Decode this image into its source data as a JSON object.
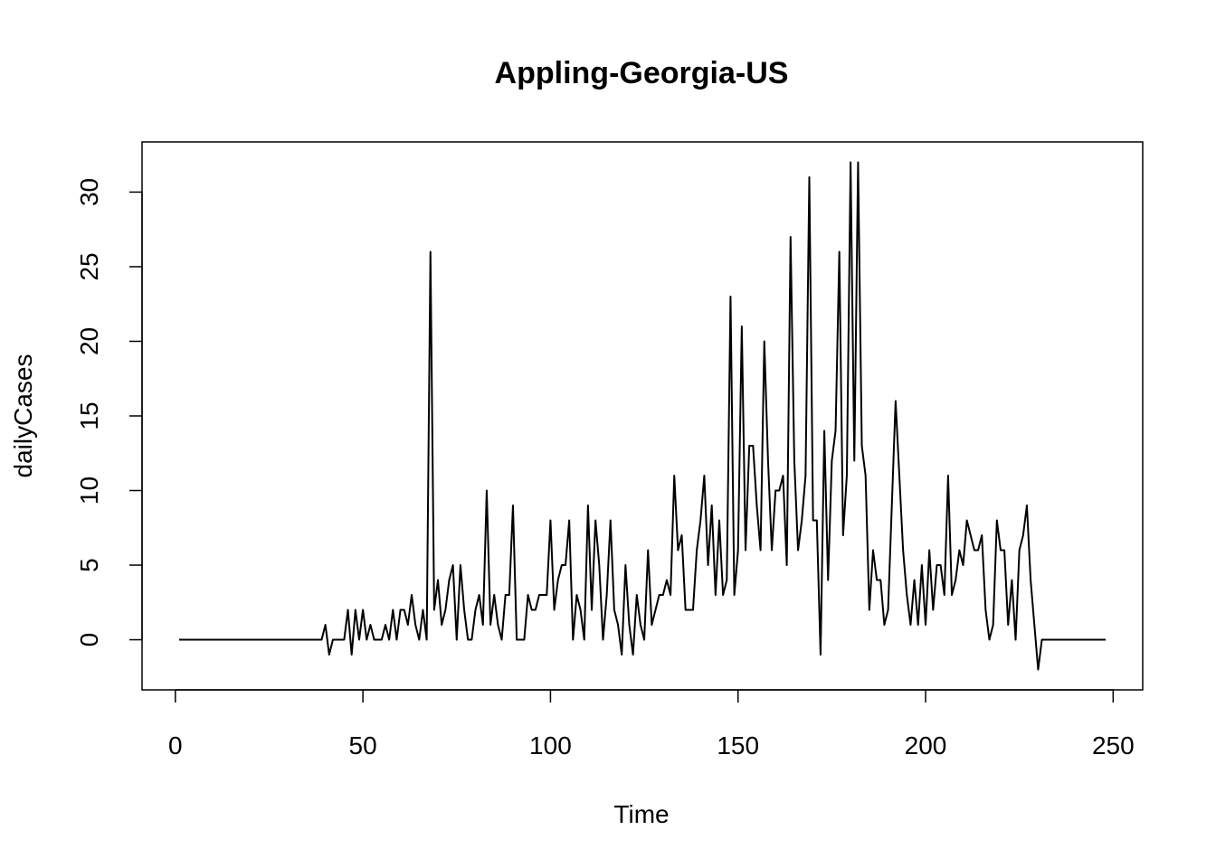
{
  "chart_data": {
    "type": "line",
    "title": "Appling-Georgia-US",
    "x_label": "Time",
    "y_label": "dailyCases",
    "x": [
      1,
      2,
      3,
      4,
      5,
      6,
      7,
      8,
      9,
      10,
      11,
      12,
      13,
      14,
      15,
      16,
      17,
      18,
      19,
      20,
      21,
      22,
      23,
      24,
      25,
      26,
      27,
      28,
      29,
      30,
      31,
      32,
      33,
      34,
      35,
      36,
      37,
      38,
      39,
      40,
      41,
      42,
      43,
      44,
      45,
      46,
      47,
      48,
      49,
      50,
      51,
      52,
      53,
      54,
      55,
      56,
      57,
      58,
      59,
      60,
      61,
      62,
      63,
      64,
      65,
      66,
      67,
      68,
      69,
      70,
      71,
      72,
      73,
      74,
      75,
      76,
      77,
      78,
      79,
      80,
      81,
      82,
      83,
      84,
      85,
      86,
      87,
      88,
      89,
      90,
      91,
      92,
      93,
      94,
      95,
      96,
      97,
      98,
      99,
      100,
      101,
      102,
      103,
      104,
      105,
      106,
      107,
      108,
      109,
      110,
      111,
      112,
      113,
      114,
      115,
      116,
      117,
      118,
      119,
      120,
      121,
      122,
      123,
      124,
      125,
      126,
      127,
      128,
      129,
      130,
      131,
      132,
      133,
      134,
      135,
      136,
      137,
      138,
      139,
      140,
      141,
      142,
      143,
      144,
      145,
      146,
      147,
      148,
      149,
      150,
      151,
      152,
      153,
      154,
      155,
      156,
      157,
      158,
      159,
      160,
      161,
      162,
      163,
      164,
      165,
      166,
      167,
      168,
      169,
      170,
      171,
      172,
      173,
      174,
      175,
      176,
      177,
      178,
      179,
      180,
      181,
      182,
      183,
      184,
      185,
      186,
      187,
      188,
      189,
      190,
      191,
      192,
      193,
      194,
      195,
      196,
      197,
      198,
      199,
      200,
      201,
      202,
      203,
      204,
      205,
      206,
      207,
      208,
      209,
      210,
      211,
      212,
      213,
      214,
      215,
      216,
      217,
      218,
      219,
      220,
      221,
      222,
      223,
      224,
      225,
      226,
      227,
      228,
      229,
      230,
      231,
      232,
      233,
      234,
      235,
      236,
      237,
      238,
      239,
      240,
      241,
      242,
      243,
      244,
      245,
      246,
      247,
      248
    ],
    "series": [
      {
        "color": "#000000",
        "values": [
          0,
          0,
          0,
          0,
          0,
          0,
          0,
          0,
          0,
          0,
          0,
          0,
          0,
          0,
          0,
          0,
          0,
          0,
          0,
          0,
          0,
          0,
          0,
          0,
          0,
          0,
          0,
          0,
          0,
          0,
          0,
          0,
          0,
          0,
          0,
          0,
          0,
          0,
          0,
          1,
          -1,
          0,
          0,
          0,
          0,
          2,
          -1,
          2,
          0,
          2,
          0,
          1,
          0,
          0,
          0,
          1,
          0,
          2,
          0,
          2,
          2,
          1,
          3,
          1,
          0,
          2,
          0,
          26,
          2,
          4,
          1,
          2,
          4,
          5,
          0,
          5,
          2,
          0,
          0,
          2,
          3,
          1,
          10,
          1,
          3,
          1,
          0,
          3,
          3,
          9,
          0,
          0,
          0,
          3,
          2,
          2,
          3,
          3,
          3,
          8,
          2,
          4,
          5,
          5,
          8,
          0,
          3,
          2,
          0,
          9,
          2,
          8,
          5,
          0,
          3,
          8,
          2,
          1,
          -1,
          5,
          1,
          -1,
          3,
          1,
          0,
          6,
          1,
          2,
          3,
          3,
          4,
          3,
          11,
          6,
          7,
          2,
          2,
          2,
          6,
          8,
          11,
          5,
          9,
          3,
          8,
          3,
          4,
          23,
          3,
          6,
          21,
          6,
          13,
          13,
          9,
          6,
          20,
          12,
          6,
          10,
          10,
          11,
          5,
          27,
          12,
          6,
          8,
          11,
          31,
          8,
          8,
          -1,
          14,
          4,
          12,
          14,
          26,
          7,
          11,
          32,
          12,
          32,
          13,
          11,
          2,
          6,
          4,
          4,
          1,
          2,
          9,
          16,
          11,
          6,
          3,
          1,
          4,
          1,
          5,
          1,
          6,
          2,
          5,
          5,
          3,
          11,
          3,
          4,
          6,
          5,
          8,
          7,
          6,
          6,
          7,
          2,
          0,
          1,
          8,
          6,
          6,
          1,
          4,
          0,
          6,
          7,
          9,
          4,
          1,
          -2,
          0,
          0,
          0,
          0,
          0,
          0,
          0,
          0,
          0,
          0,
          0,
          0,
          0,
          0,
          0,
          0,
          0,
          0
        ]
      }
    ],
    "xlim": [
      -8.88,
      257.88
    ],
    "ylim": [
      -3.36,
      33.36
    ],
    "xticks": [
      0,
      50,
      100,
      150,
      200,
      250
    ],
    "yticks": [
      0,
      5,
      10,
      15,
      20,
      25,
      30
    ],
    "grid": false
  }
}
